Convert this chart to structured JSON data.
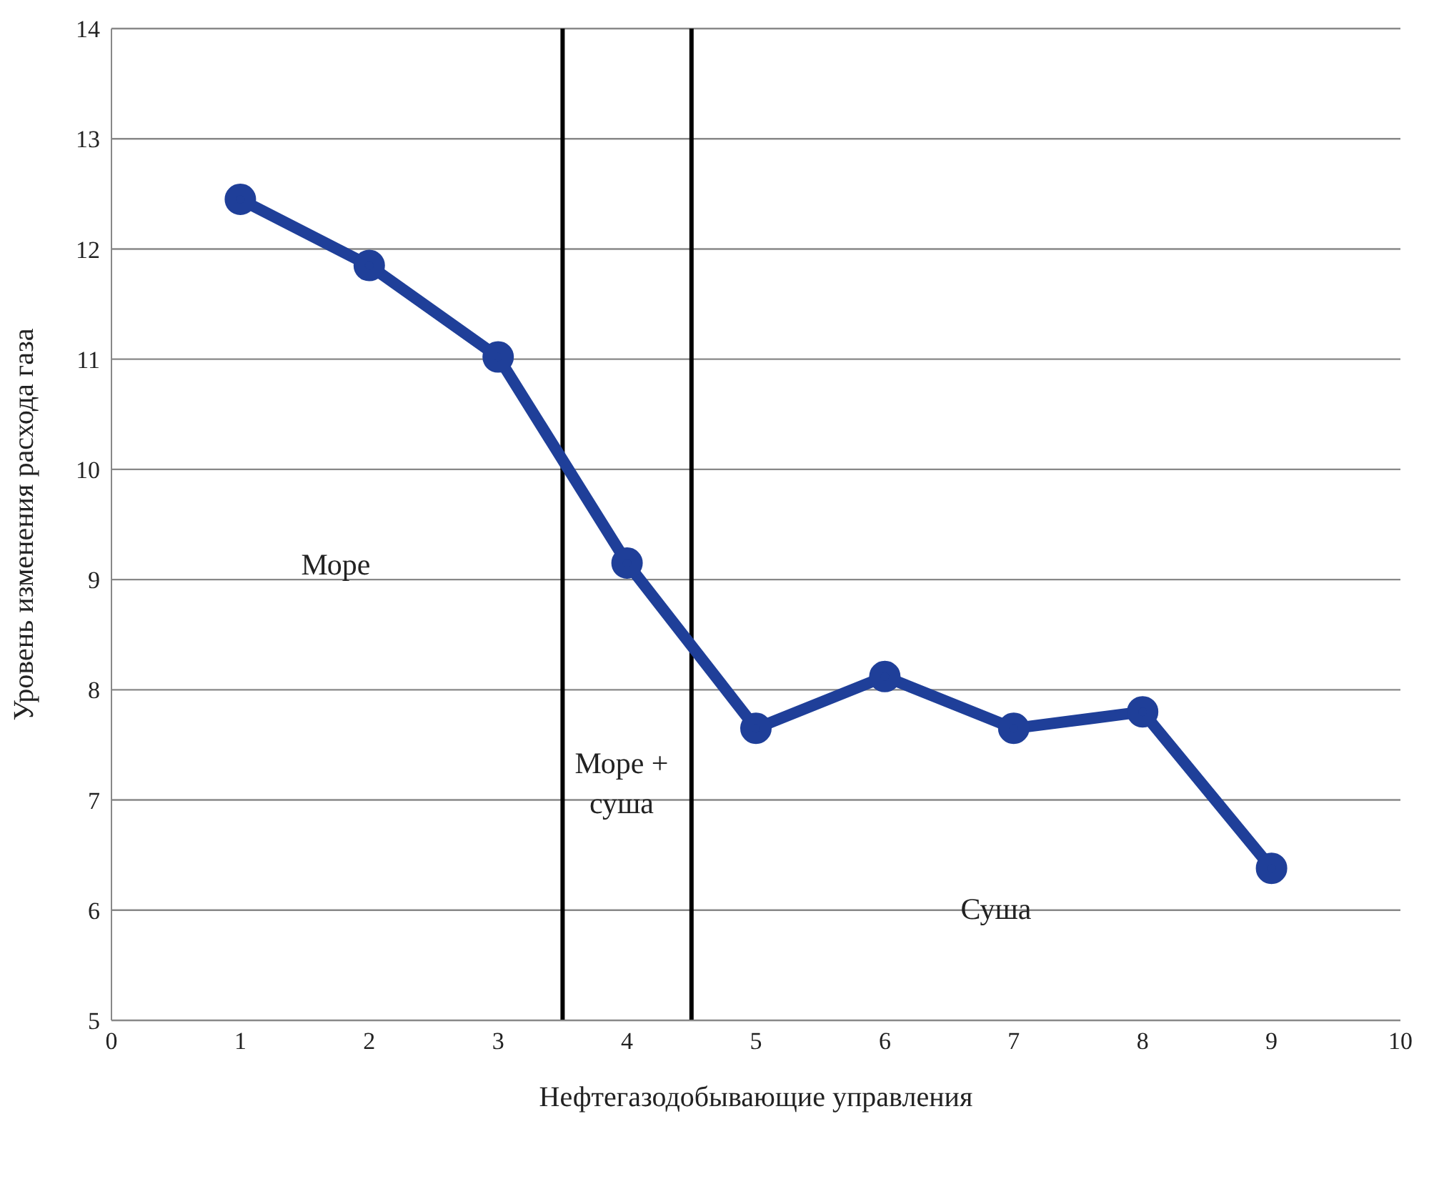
{
  "chart_data": {
    "type": "line",
    "xlabel": "Нефтегазодобывающие управления",
    "ylabel": "Уровень изменения расхода газа",
    "x": [
      1,
      2,
      3,
      4,
      5,
      6,
      7,
      8,
      9
    ],
    "series": [
      {
        "color": "#1f3f99",
        "values": [
          12.45,
          11.85,
          11.02,
          9.15,
          7.65,
          8.12,
          7.65,
          7.8,
          6.38
        ]
      }
    ],
    "xlim": [
      0,
      10
    ],
    "xticks": [
      0,
      1,
      2,
      3,
      4,
      5,
      6,
      7,
      8,
      9,
      10
    ],
    "ylim": [
      5,
      14
    ],
    "yticks": [
      5,
      6,
      7,
      8,
      9,
      10,
      11,
      12,
      13,
      14
    ],
    "grid": "y",
    "marker": "circle",
    "line_style": "solid",
    "ref_lines": [
      {
        "axis": "x",
        "value": 3.5,
        "color": "#000000"
      },
      {
        "axis": "x",
        "value": 4.5,
        "color": "#000000"
      }
    ],
    "annotations": [
      "Море",
      "Море + суша",
      "Суша"
    ]
  }
}
